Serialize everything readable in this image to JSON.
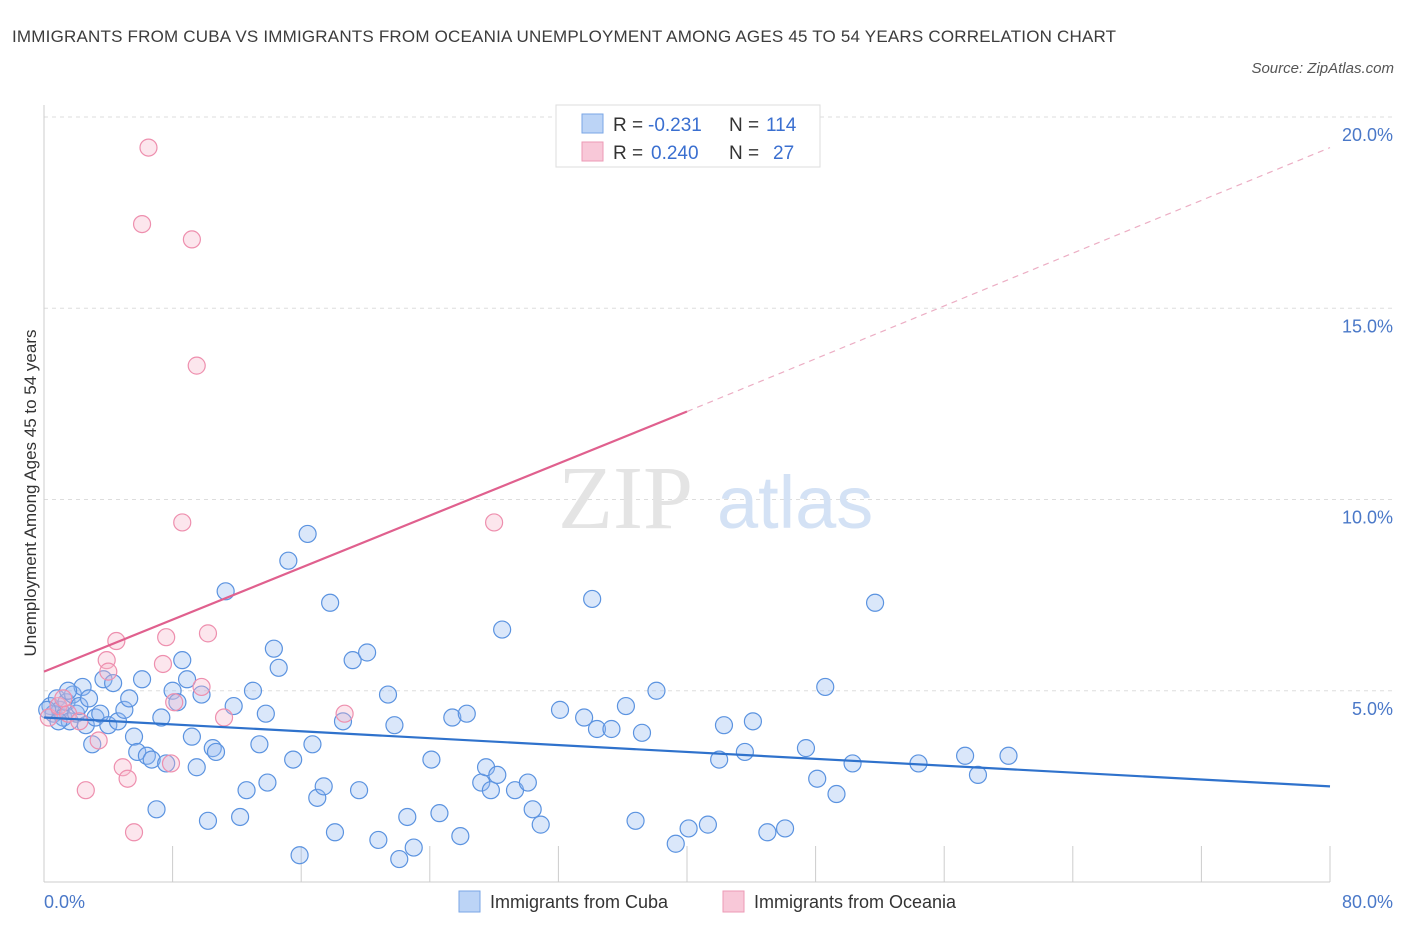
{
  "header": {
    "title": "IMMIGRANTS FROM CUBA VS IMMIGRANTS FROM OCEANIA UNEMPLOYMENT AMONG AGES 45 TO 54 YEARS CORRELATION CHART",
    "source": "Source: ZipAtlas.com"
  },
  "legend": {
    "r_label": "R =",
    "n_label": "N =",
    "cuba_r": "-0.231",
    "cuba_n": "114",
    "oceania_r": "0.240",
    "oceania_n": "27"
  },
  "bottom_legend": {
    "cuba": "Immigrants from Cuba",
    "oceania": "Immigrants from Oceania"
  },
  "watermark": {
    "zip": "ZIP",
    "atlas": "atlas"
  },
  "chart_data": {
    "type": "scatter",
    "title": "IMMIGRANTS FROM CUBA VS IMMIGRANTS FROM OCEANIA UNEMPLOYMENT AMONG AGES 45 TO 54 YEARS CORRELATION CHART",
    "xlabel": "",
    "ylabel": "Unemployment Among Ages 45 to 54 years",
    "xlim": [
      0,
      80
    ],
    "ylim": [
      0,
      20
    ],
    "x_tick_labels": [
      "0.0%",
      "80.0%"
    ],
    "y_ticks": [
      5,
      10,
      15,
      20
    ],
    "y_tick_labels": [
      "5.0%",
      "10.0%",
      "15.0%",
      "20.0%"
    ],
    "grid": true,
    "legend_position": "top-center",
    "colors": {
      "cuba": "#5b93e0",
      "cuba_line": "#2f72cc",
      "oceania": "#ee8fae",
      "oceania_line": "#e0608e"
    },
    "series": [
      {
        "name": "Immigrants from Cuba",
        "trend": {
          "x": [
            0,
            80
          ],
          "y": [
            4.3,
            2.5
          ]
        },
        "points": [
          [
            0.4,
            4.6
          ],
          [
            0.6,
            4.4
          ],
          [
            0.8,
            4.8
          ],
          [
            1.0,
            4.5
          ],
          [
            1.2,
            4.3
          ],
          [
            1.4,
            4.7
          ],
          [
            1.6,
            4.2
          ],
          [
            1.8,
            4.9
          ],
          [
            2.0,
            4.4
          ],
          [
            2.2,
            4.6
          ],
          [
            2.4,
            5.1
          ],
          [
            2.6,
            4.1
          ],
          [
            2.8,
            4.8
          ],
          [
            3.0,
            3.6
          ],
          [
            3.2,
            4.3
          ],
          [
            3.5,
            4.4
          ],
          [
            3.7,
            5.3
          ],
          [
            4.0,
            4.1
          ],
          [
            4.3,
            5.2
          ],
          [
            4.6,
            4.2
          ],
          [
            5.0,
            4.5
          ],
          [
            5.3,
            4.8
          ],
          [
            5.6,
            3.8
          ],
          [
            5.8,
            3.4
          ],
          [
            6.1,
            5.3
          ],
          [
            6.4,
            3.3
          ],
          [
            6.7,
            3.2
          ],
          [
            7.0,
            1.9
          ],
          [
            7.3,
            4.3
          ],
          [
            7.6,
            3.1
          ],
          [
            8.0,
            5.0
          ],
          [
            8.3,
            4.7
          ],
          [
            8.6,
            5.8
          ],
          [
            8.9,
            5.3
          ],
          [
            9.2,
            3.8
          ],
          [
            9.5,
            3.0
          ],
          [
            9.8,
            4.9
          ],
          [
            10.2,
            1.6
          ],
          [
            10.5,
            3.5
          ],
          [
            10.7,
            3.4
          ],
          [
            11.3,
            7.6
          ],
          [
            11.8,
            4.6
          ],
          [
            12.2,
            1.7
          ],
          [
            12.6,
            2.4
          ],
          [
            13.0,
            5.0
          ],
          [
            13.4,
            3.6
          ],
          [
            13.9,
            2.6
          ],
          [
            14.3,
            6.1
          ],
          [
            14.6,
            5.6
          ],
          [
            15.2,
            8.4
          ],
          [
            15.5,
            3.2
          ],
          [
            15.9,
            0.7
          ],
          [
            16.4,
            9.1
          ],
          [
            16.7,
            3.6
          ],
          [
            17.0,
            2.2
          ],
          [
            17.4,
            2.5
          ],
          [
            17.8,
            7.3
          ],
          [
            18.1,
            1.3
          ],
          [
            18.6,
            4.2
          ],
          [
            19.2,
            5.8
          ],
          [
            19.6,
            2.4
          ],
          [
            20.1,
            6.0
          ],
          [
            20.8,
            1.1
          ],
          [
            21.4,
            4.9
          ],
          [
            22.1,
            0.6
          ],
          [
            22.6,
            1.7
          ],
          [
            23.0,
            0.9
          ],
          [
            24.1,
            3.2
          ],
          [
            24.6,
            1.8
          ],
          [
            25.4,
            4.3
          ],
          [
            25.9,
            1.2
          ],
          [
            26.3,
            4.4
          ],
          [
            27.2,
            2.6
          ],
          [
            27.5,
            3.0
          ],
          [
            27.8,
            2.4
          ],
          [
            28.2,
            2.8
          ],
          [
            28.5,
            6.6
          ],
          [
            29.3,
            2.4
          ],
          [
            30.1,
            2.6
          ],
          [
            30.4,
            1.9
          ],
          [
            30.9,
            1.5
          ],
          [
            32.1,
            4.5
          ],
          [
            33.6,
            4.3
          ],
          [
            34.1,
            7.4
          ],
          [
            34.4,
            4.0
          ],
          [
            35.3,
            4.0
          ],
          [
            36.2,
            4.6
          ],
          [
            36.8,
            1.6
          ],
          [
            37.2,
            3.9
          ],
          [
            38.1,
            5.0
          ],
          [
            39.3,
            1.0
          ],
          [
            40.1,
            1.4
          ],
          [
            41.3,
            1.5
          ],
          [
            42.0,
            3.2
          ],
          [
            42.3,
            4.1
          ],
          [
            43.6,
            3.4
          ],
          [
            44.1,
            4.2
          ],
          [
            45.0,
            1.3
          ],
          [
            46.1,
            1.4
          ],
          [
            47.4,
            3.5
          ],
          [
            48.1,
            2.7
          ],
          [
            48.6,
            5.1
          ],
          [
            49.3,
            2.3
          ],
          [
            50.3,
            3.1
          ],
          [
            51.7,
            7.3
          ],
          [
            54.4,
            3.1
          ],
          [
            57.3,
            3.3
          ],
          [
            58.1,
            2.8
          ],
          [
            60.0,
            3.3
          ],
          [
            0.2,
            4.5
          ],
          [
            0.9,
            4.2
          ],
          [
            1.5,
            5.0
          ],
          [
            21.8,
            4.1
          ],
          [
            13.8,
            4.4
          ]
        ]
      },
      {
        "name": "Immigrants from Oceania",
        "trend": {
          "x": [
            0,
            40
          ],
          "y": [
            5.5,
            12.3
          ],
          "dashed_to": {
            "x": 80,
            "y": 19.2
          }
        },
        "points": [
          [
            0.3,
            4.3
          ],
          [
            0.9,
            4.6
          ],
          [
            1.5,
            4.4
          ],
          [
            2.2,
            4.2
          ],
          [
            2.6,
            2.4
          ],
          [
            3.4,
            3.7
          ],
          [
            3.9,
            5.8
          ],
          [
            4.5,
            6.3
          ],
          [
            4.9,
            3.0
          ],
          [
            5.6,
            1.3
          ],
          [
            6.5,
            19.2
          ],
          [
            6.1,
            17.2
          ],
          [
            9.2,
            16.8
          ],
          [
            9.5,
            13.5
          ],
          [
            8.6,
            9.4
          ],
          [
            7.4,
            5.7
          ],
          [
            7.6,
            6.4
          ],
          [
            7.9,
            3.1
          ],
          [
            8.1,
            4.7
          ],
          [
            9.8,
            5.1
          ],
          [
            10.2,
            6.5
          ],
          [
            11.2,
            4.3
          ],
          [
            4.0,
            5.5
          ],
          [
            1.2,
            4.8
          ],
          [
            18.7,
            4.4
          ],
          [
            28.0,
            9.4
          ],
          [
            5.2,
            2.7
          ]
        ]
      }
    ]
  }
}
